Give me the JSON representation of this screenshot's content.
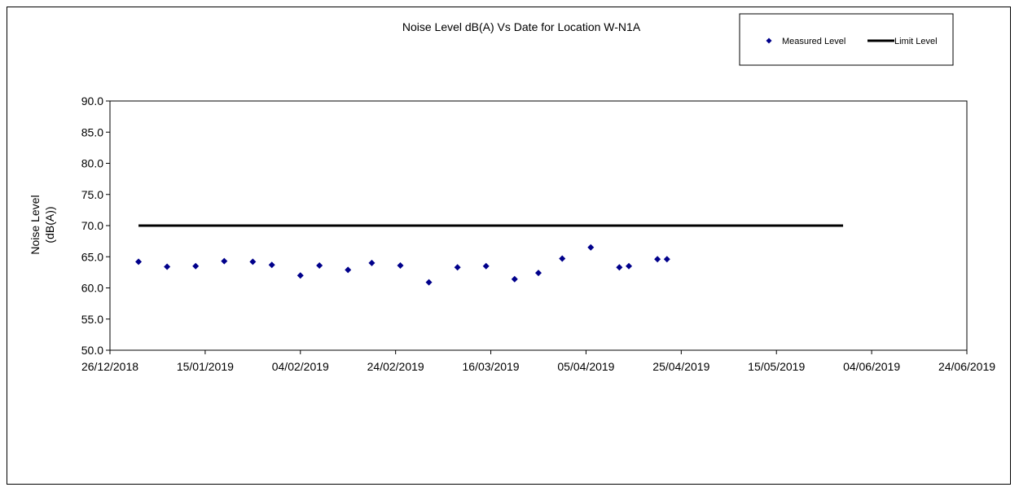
{
  "chart_data": {
    "type": "scatter",
    "title": "Noise Level dB(A) Vs Date for Location W-N1A",
    "ylabel_lines": [
      "Noise Level",
      "(dB(A))"
    ],
    "xlabel": "",
    "xlim": [
      "2018-12-26",
      "2019-06-24"
    ],
    "ylim": [
      50,
      90
    ],
    "x_ticks": [
      "26/12/2018",
      "15/01/2019",
      "04/02/2019",
      "24/02/2019",
      "16/03/2019",
      "05/04/2019",
      "25/04/2019",
      "15/05/2019",
      "04/06/2019",
      "24/06/2019"
    ],
    "y_ticks": [
      "50.0",
      "55.0",
      "60.0",
      "65.0",
      "70.0",
      "75.0",
      "80.0",
      "85.0",
      "90.0"
    ],
    "grid": false,
    "legend_position": "top-right",
    "series": [
      {
        "name": "Measured Level",
        "kind": "scatter",
        "color": "#00008B",
        "marker": "diamond",
        "points": [
          {
            "x": "2019-01-01",
            "y": 64.2
          },
          {
            "x": "2019-01-07",
            "y": 63.4
          },
          {
            "x": "2019-01-13",
            "y": 63.5
          },
          {
            "x": "2019-01-19",
            "y": 64.3
          },
          {
            "x": "2019-01-25",
            "y": 64.2
          },
          {
            "x": "2019-01-29",
            "y": 63.7
          },
          {
            "x": "2019-02-04",
            "y": 62.0
          },
          {
            "x": "2019-02-08",
            "y": 63.6
          },
          {
            "x": "2019-02-14",
            "y": 62.9
          },
          {
            "x": "2019-02-19",
            "y": 64.0
          },
          {
            "x": "2019-02-25",
            "y": 63.6
          },
          {
            "x": "2019-03-03",
            "y": 60.9
          },
          {
            "x": "2019-03-09",
            "y": 63.3
          },
          {
            "x": "2019-03-15",
            "y": 63.5
          },
          {
            "x": "2019-03-21",
            "y": 61.4
          },
          {
            "x": "2019-03-26",
            "y": 62.4
          },
          {
            "x": "2019-03-31",
            "y": 64.7
          },
          {
            "x": "2019-04-06",
            "y": 66.5
          },
          {
            "x": "2019-04-12",
            "y": 63.3
          },
          {
            "x": "2019-04-14",
            "y": 63.5
          },
          {
            "x": "2019-04-20",
            "y": 64.6
          },
          {
            "x": "2019-04-22",
            "y": 64.6
          }
        ]
      },
      {
        "name": "Limit Level",
        "kind": "line",
        "color": "#000000",
        "points": [
          {
            "x": "2019-01-01",
            "y": 70.0
          },
          {
            "x": "2019-05-29",
            "y": 70.0
          }
        ]
      }
    ]
  }
}
